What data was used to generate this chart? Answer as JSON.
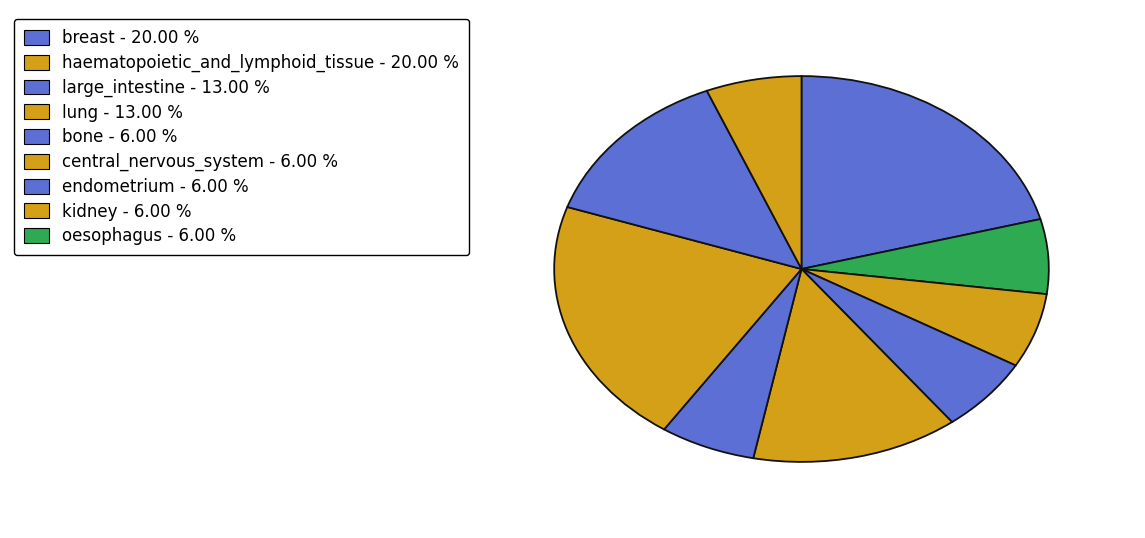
{
  "labels": [
    "breast",
    "haematopoietic_and_lymphoid_tissue",
    "large_intestine",
    "lung",
    "bone",
    "central_nervous_system",
    "endometrium",
    "kidney",
    "oesophagus"
  ],
  "values": [
    20,
    20,
    13,
    13,
    6,
    6,
    6,
    6,
    6
  ],
  "pie_order_labels": [
    "breast",
    "oesophagus",
    "kidney",
    "endometrium",
    "lung",
    "bone",
    "haematopoietic_and_lymphoid_tissue",
    "large_intestine",
    "central_nervous_system"
  ],
  "pie_order_values": [
    20,
    6,
    6,
    6,
    13,
    6,
    20,
    13,
    6
  ],
  "pie_order_colors": [
    "#5b6fd4",
    "#2eaa52",
    "#d4a017",
    "#5b6fd4",
    "#d4a017",
    "#5b6fd4",
    "#d4a017",
    "#5b6fd4",
    "#d4a017"
  ],
  "legend_colors": [
    "#5b6fd4",
    "#d4a017",
    "#5b6fd4",
    "#d4a017",
    "#5b6fd4",
    "#d4a017",
    "#5b6fd4",
    "#d4a017",
    "#2eaa52"
  ],
  "edge_color": "#111111",
  "background_color": "#ffffff",
  "legend_fontsize": 12,
  "startangle": 90
}
